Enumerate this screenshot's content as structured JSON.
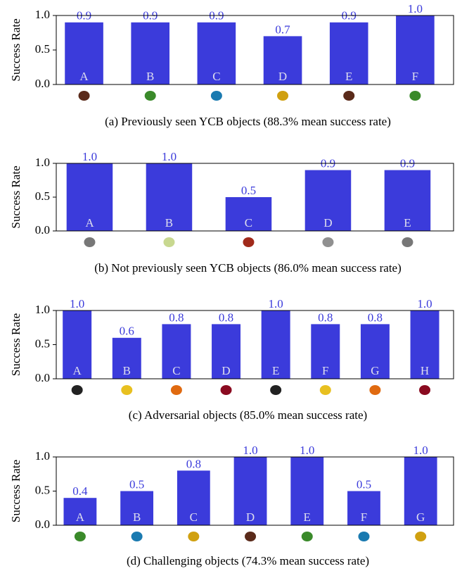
{
  "chart_data": [
    {
      "type": "bar",
      "title": "(a) Previously seen YCB objects (88.3% mean success rate)",
      "ylabel": "Success Rate",
      "categories": [
        "A",
        "B",
        "C",
        "D",
        "E",
        "F"
      ],
      "values": [
        0.9,
        0.9,
        0.9,
        0.7,
        0.9,
        1
      ],
      "value_labels": [
        "0.9",
        "0.9",
        "0.9",
        "0.7",
        "0.9",
        "1.0"
      ],
      "color": "#3b3bdb",
      "ylim": [
        0,
        1
      ],
      "yticks": [
        {
          "value": 0,
          "label": "0.0"
        },
        0.5,
        {
          "value": 1,
          "label": "1.0"
        }
      ]
    },
    {
      "type": "bar",
      "title": "(b) Not previously seen YCB objects (86.0% mean success rate)",
      "ylabel": "Success Rate",
      "categories": [
        "A",
        "B",
        "C",
        "D",
        "E"
      ],
      "values": [
        1,
        1,
        0.5,
        0.9,
        0.9
      ],
      "value_labels": [
        "1.0",
        "1.0",
        "0.5",
        "0.9",
        "0.9"
      ],
      "color": "#3b3bdb",
      "ylim": [
        0,
        1
      ],
      "yticks": [
        {
          "value": 0,
          "label": "0.0"
        },
        0.5,
        {
          "value": 1,
          "label": "1.0"
        }
      ]
    },
    {
      "type": "bar",
      "title": "(c) Adversarial objects (85.0% mean success rate)",
      "ylabel": "Success Rate",
      "categories": [
        "A",
        "B",
        "C",
        "D",
        "E",
        "F",
        "G",
        "H"
      ],
      "values": [
        1,
        0.6,
        0.8,
        0.8,
        1,
        0.8,
        0.8,
        1
      ],
      "value_labels": [
        "1.0",
        "0.6",
        "0.8",
        "0.8",
        "1.0",
        "0.8",
        "0.8",
        "1.0"
      ],
      "color": "#3b3bdb",
      "ylim": [
        0,
        1
      ],
      "yticks": [
        {
          "value": 0,
          "label": "0.0"
        },
        0.5,
        {
          "value": 1,
          "label": "1.0"
        }
      ]
    },
    {
      "type": "bar",
      "title": "(d) Challenging objects (74.3% mean success rate)",
      "ylabel": "Success Rate",
      "categories": [
        "A",
        "B",
        "C",
        "D",
        "E",
        "F",
        "G"
      ],
      "values": [
        0.4,
        0.5,
        0.8,
        1,
        1,
        0.5,
        1
      ],
      "value_labels": [
        "0.4",
        "0.5",
        "0.8",
        "1.0",
        "1.0",
        "0.5",
        "1.0"
      ],
      "color": "#3b3bdb",
      "ylim": [
        0,
        1
      ],
      "yticks": [
        {
          "value": 0,
          "label": "0.0"
        },
        0.5,
        {
          "value": 1,
          "label": "1.0"
        }
      ]
    }
  ]
}
